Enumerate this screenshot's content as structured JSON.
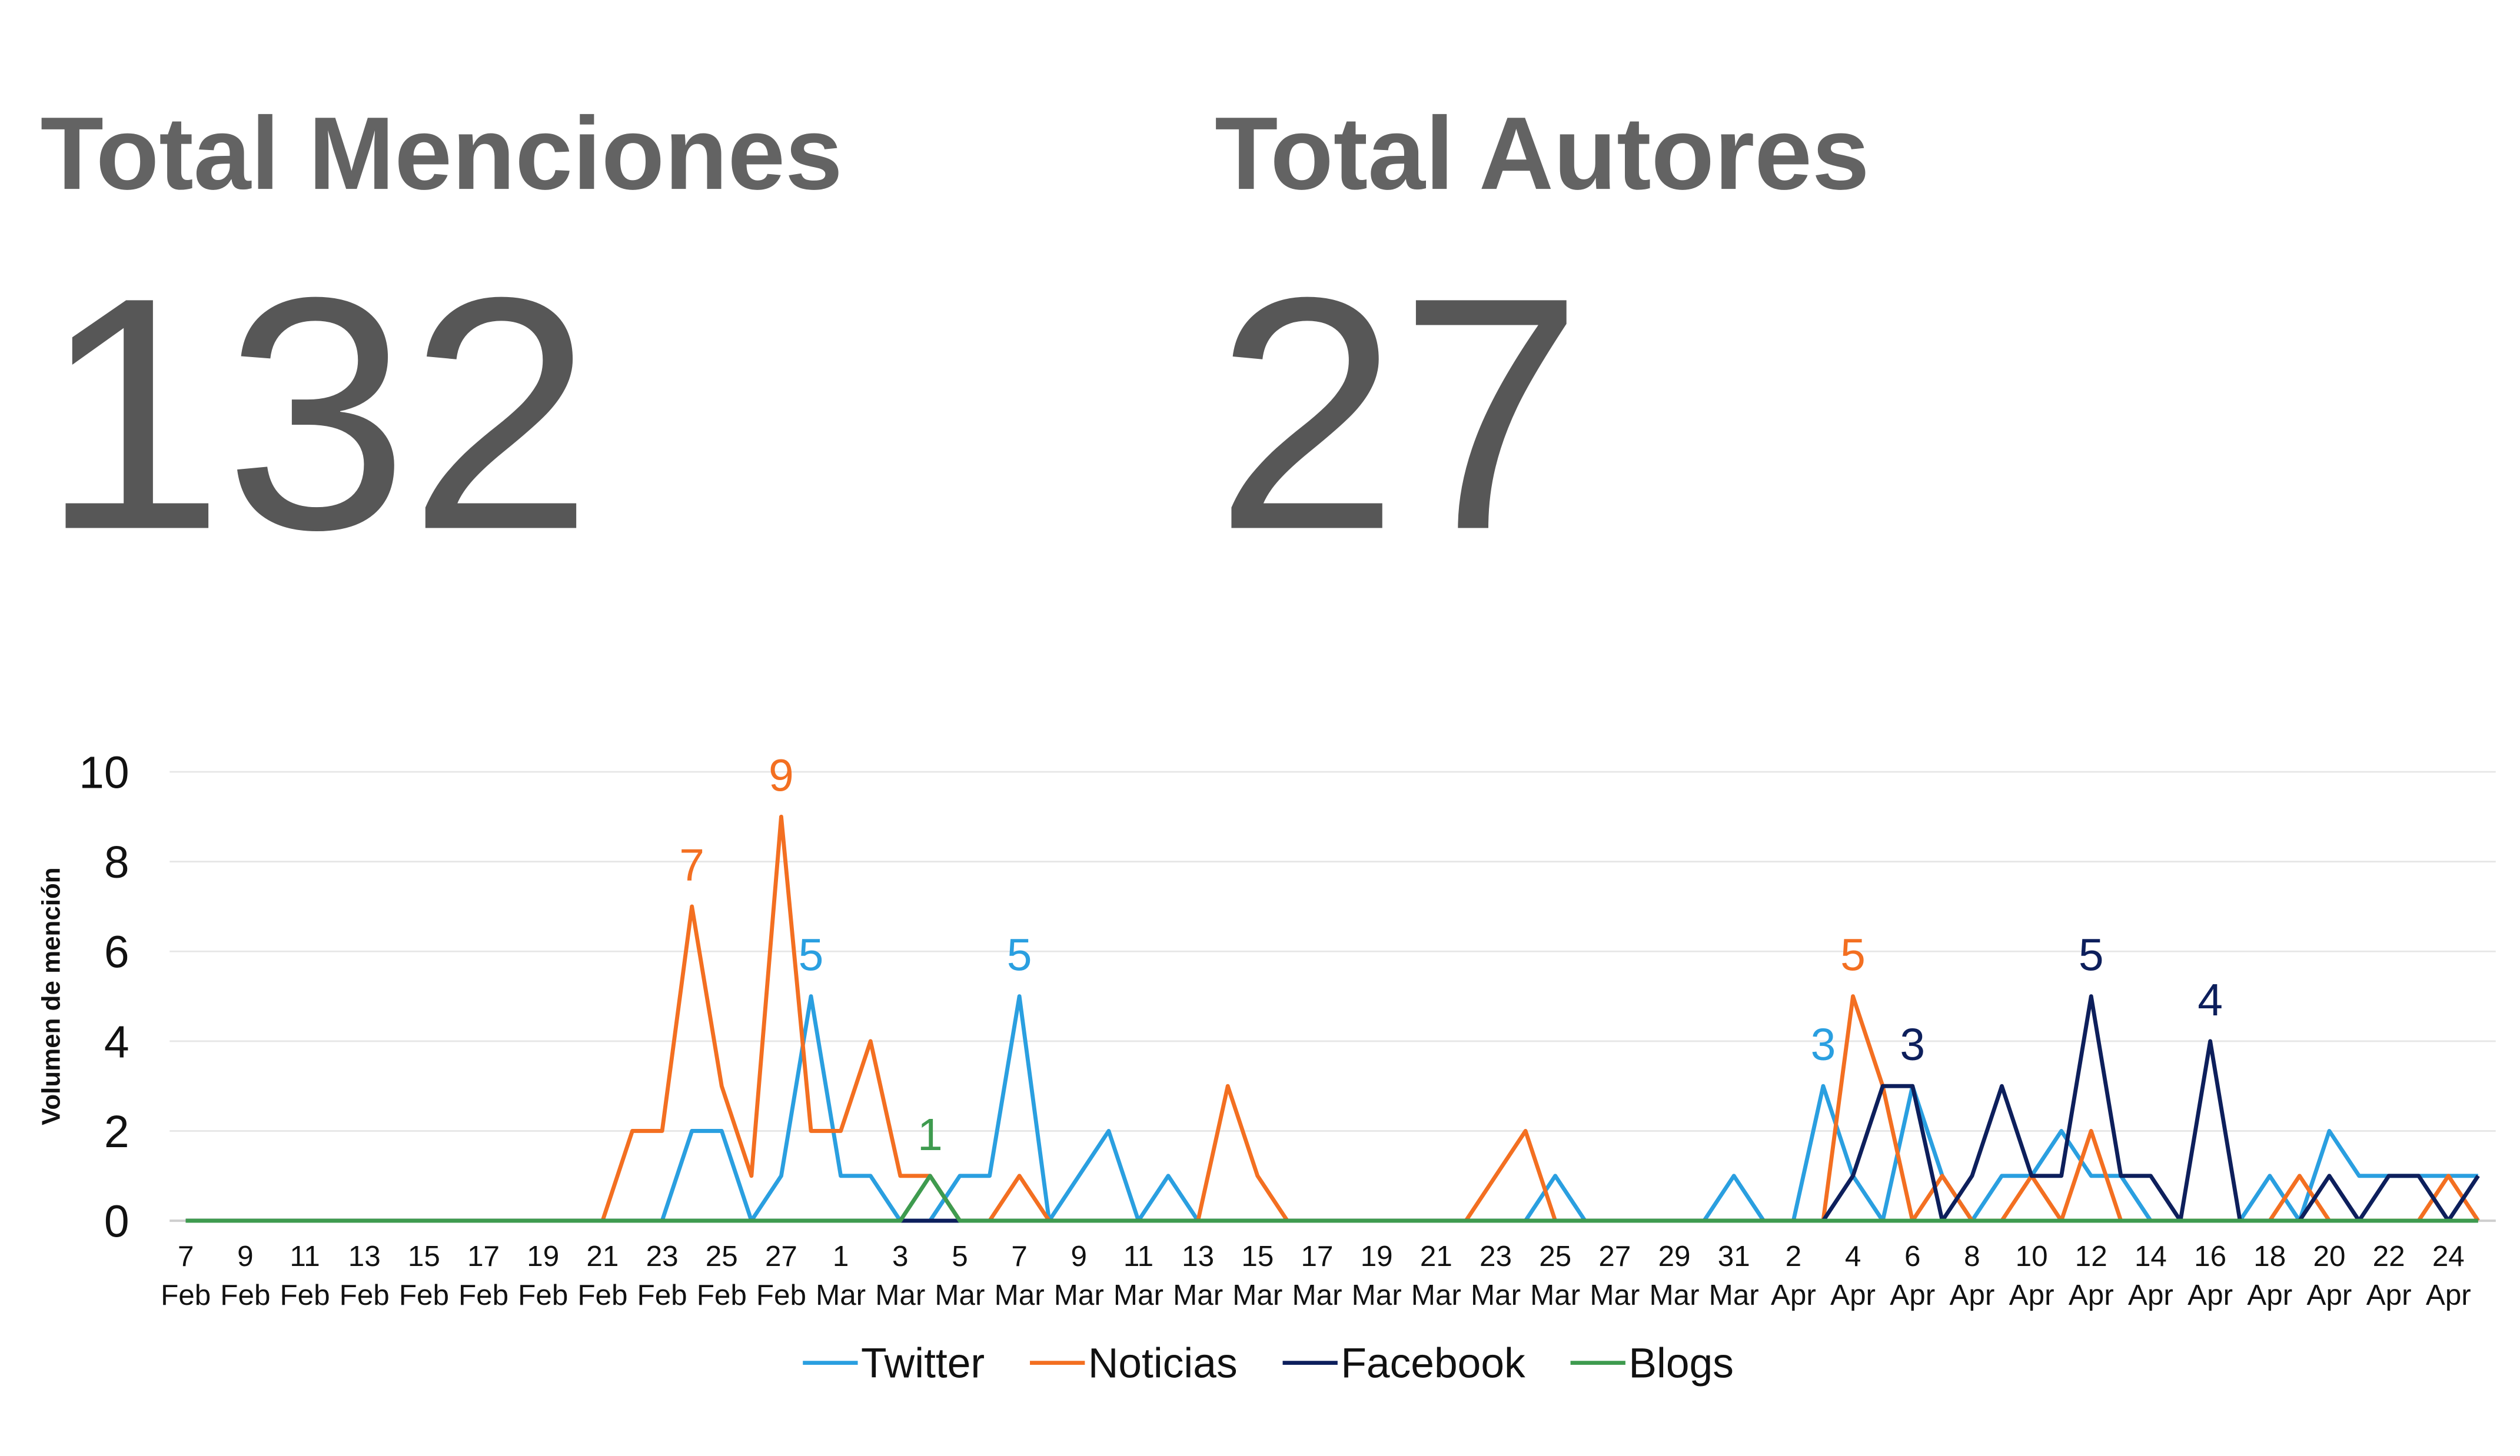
{
  "kpis": [
    {
      "title": "Total Menciones",
      "value": "132"
    },
    {
      "title": "Total Autores",
      "value": "27"
    }
  ],
  "chart_data": {
    "type": "line",
    "y_label": "Volumen de mención",
    "categories": [
      "7 Feb",
      null,
      "9 Feb",
      null,
      "11 Feb",
      null,
      "13 Feb",
      null,
      "15 Feb",
      null,
      "17 Feb",
      null,
      "19 Feb",
      null,
      "21 Feb",
      null,
      "23 Feb",
      null,
      "25 Feb",
      null,
      "27 Feb",
      null,
      "1 Mar",
      null,
      "3 Mar",
      null,
      "5 Mar",
      null,
      "7 Mar",
      null,
      "9 Mar",
      null,
      "11 Mar",
      null,
      "13 Mar",
      null,
      "15 Mar",
      null,
      "17 Mar",
      null,
      "19 Mar",
      null,
      "21 Mar",
      null,
      "23 Mar",
      null,
      "25 Mar",
      null,
      "27 Mar",
      null,
      "29 Mar",
      null,
      "31 Mar",
      null,
      "2 Apr",
      null,
      "4 Apr",
      null,
      "6 Apr",
      null,
      "8 Apr",
      null,
      "10 Apr",
      null,
      "12 Apr",
      null,
      "14 Apr",
      null,
      "16 Apr",
      null,
      "18 Apr",
      null,
      "20 Apr",
      null,
      "22 Apr",
      null,
      "24 Apr",
      null
    ],
    "series": [
      {
        "name": "Twitter",
        "color": "#2a9fe0",
        "data_labels": [
          21,
          28,
          55
        ],
        "values": [
          0,
          0,
          0,
          0,
          0,
          0,
          0,
          0,
          0,
          0,
          0,
          0,
          0,
          0,
          0,
          0,
          0,
          2,
          2,
          0,
          1,
          5,
          1,
          1,
          0,
          0,
          1,
          1,
          5,
          0,
          1,
          2,
          0,
          1,
          0,
          0,
          0,
          0,
          0,
          0,
          0,
          0,
          0,
          0,
          0,
          0,
          1,
          0,
          0,
          0,
          0,
          0,
          1,
          0,
          0,
          3,
          1,
          0,
          3,
          1,
          0,
          1,
          1,
          2,
          1,
          1,
          0,
          0,
          0,
          0,
          1,
          0,
          2,
          1,
          1,
          1,
          1,
          1
        ]
      },
      {
        "name": "Noticias",
        "color": "#f36f21",
        "data_labels": [
          17,
          20,
          56
        ],
        "values": [
          0,
          0,
          0,
          0,
          0,
          0,
          0,
          0,
          0,
          0,
          0,
          0,
          0,
          0,
          0,
          2,
          2,
          7,
          3,
          1,
          9,
          2,
          2,
          4,
          1,
          1,
          0,
          0,
          1,
          0,
          0,
          0,
          0,
          0,
          0,
          3,
          1,
          0,
          0,
          0,
          0,
          0,
          0,
          0,
          1,
          2,
          0,
          0,
          0,
          0,
          0,
          0,
          0,
          0,
          0,
          0,
          5,
          3,
          0,
          1,
          0,
          0,
          1,
          0,
          2,
          0,
          0,
          0,
          0,
          0,
          0,
          1,
          0,
          0,
          0,
          0,
          1,
          0
        ]
      },
      {
        "name": "Facebook",
        "color": "#0d1f5c",
        "data_labels": [
          58,
          64,
          68
        ],
        "values": [
          0,
          0,
          0,
          0,
          0,
          0,
          0,
          0,
          0,
          0,
          0,
          0,
          0,
          0,
          0,
          0,
          0,
          0,
          0,
          0,
          0,
          0,
          0,
          0,
          0,
          0,
          0,
          0,
          0,
          0,
          0,
          0,
          0,
          0,
          0,
          0,
          0,
          0,
          0,
          0,
          0,
          0,
          0,
          0,
          0,
          0,
          0,
          0,
          0,
          0,
          0,
          0,
          0,
          0,
          0,
          0,
          1,
          3,
          3,
          0,
          1,
          3,
          1,
          1,
          5,
          1,
          1,
          0,
          4,
          0,
          0,
          0,
          1,
          0,
          1,
          1,
          0,
          1
        ]
      },
      {
        "name": "Blogs",
        "color": "#3e9b4f",
        "data_labels": [
          25
        ],
        "values": [
          0,
          0,
          0,
          0,
          0,
          0,
          0,
          0,
          0,
          0,
          0,
          0,
          0,
          0,
          0,
          0,
          0,
          0,
          0,
          0,
          0,
          0,
          0,
          0,
          0,
          1,
          0,
          0,
          0,
          0,
          0,
          0,
          0,
          0,
          0,
          0,
          0,
          0,
          0,
          0,
          0,
          0,
          0,
          0,
          0,
          0,
          0,
          0,
          0,
          0,
          0,
          0,
          0,
          0,
          0,
          0,
          0,
          0,
          0,
          0,
          0,
          0,
          0,
          0,
          0,
          0,
          0,
          0,
          0,
          0,
          0,
          0,
          0,
          0,
          0,
          0,
          0,
          0
        ]
      }
    ],
    "ylim": [
      0,
      10
    ],
    "yticks": [
      0,
      2,
      4,
      6,
      8,
      10
    ],
    "grid": true,
    "legend": "bottom"
  }
}
